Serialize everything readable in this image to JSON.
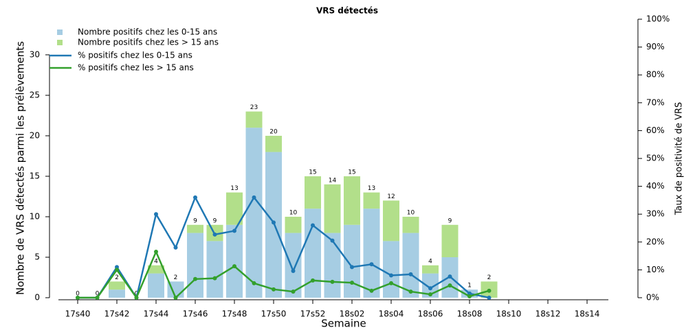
{
  "chart_data": {
    "type": "bar",
    "title": "VRS détectés",
    "x_label": "Semaine",
    "y_label": "Nombre de VRS détectés parmi les prélèvements",
    "y2_label": "Taux de positivité de VRS",
    "categories": [
      "17s40",
      null,
      "17s42",
      null,
      "17s44",
      null,
      "17s46",
      null,
      "17s48",
      null,
      "17s50",
      null,
      "17s52",
      null,
      "18s02",
      null,
      "18s04",
      null,
      "18s06",
      null,
      "18s08",
      null,
      "18s10",
      null,
      "18s12",
      null,
      "18s14",
      null
    ],
    "series": [
      {
        "name": "Nombre positifs chez les 0-15 ans",
        "type": "bar",
        "color": "#a6cde3",
        "values": [
          0,
          0,
          1,
          0,
          3,
          2,
          8,
          7,
          9,
          21,
          18,
          8,
          11,
          8,
          9,
          11,
          7,
          8,
          3,
          5,
          1,
          0,
          null,
          null,
          null,
          null,
          null,
          null
        ]
      },
      {
        "name": "Nombre positifs chez les > 15 ans",
        "type": "bar",
        "color": "#b2df8a",
        "values": [
          0,
          0,
          1,
          0,
          1,
          0,
          1,
          2,
          4,
          2,
          2,
          2,
          4,
          6,
          6,
          2,
          5,
          2,
          1,
          4,
          0,
          2,
          null,
          null,
          null,
          null,
          null,
          null
        ]
      },
      {
        "name": "% positifs chez les 0-15 ans",
        "type": "line",
        "axis": "y2",
        "color": "#1f78b4",
        "values": [
          0,
          0,
          11,
          0,
          30,
          18,
          36,
          22.7,
          24,
          36,
          27,
          9.6,
          26,
          20.5,
          11,
          12,
          8,
          8.4,
          3.4,
          7.6,
          1.5,
          0,
          null,
          null,
          null,
          null,
          null,
          null
        ]
      },
      {
        "name": "% positifs chez les > 15 ans",
        "type": "line",
        "axis": "y2",
        "color": "#33a02c",
        "values": [
          0,
          0,
          10,
          0,
          16.5,
          0,
          6.7,
          7,
          11.3,
          5.2,
          3,
          2.2,
          6.2,
          5.7,
          5.4,
          2.5,
          5.2,
          2.2,
          1.2,
          4.4,
          0.5,
          2.5,
          null,
          null,
          null,
          null,
          null,
          null
        ]
      }
    ],
    "total_labels": [
      0,
      0,
      2,
      0,
      4,
      2,
      9,
      9,
      13,
      23,
      20,
      10,
      15,
      14,
      15,
      13,
      12,
      10,
      4,
      9,
      1,
      2,
      null,
      null,
      null,
      null,
      null,
      null
    ],
    "ylim": [
      0,
      34.4
    ],
    "yticks": [
      0,
      5,
      10,
      15,
      20,
      25,
      30
    ],
    "y2lim": [
      0,
      100
    ],
    "y2ticks": [
      {
        "value": 0,
        "label": "0%"
      },
      {
        "value": 10,
        "label": "10%"
      },
      {
        "value": 20,
        "label": "20%"
      },
      {
        "value": 30,
        "label": "30%"
      },
      {
        "value": 40,
        "label": "40%"
      },
      {
        "value": 50,
        "label": "50%"
      },
      {
        "value": 60,
        "label": "60%"
      },
      {
        "value": 70,
        "label": "70%"
      },
      {
        "value": 80,
        "label": "80%"
      },
      {
        "value": 90,
        "label": "90%"
      },
      {
        "value": 100,
        "label": "100%"
      }
    ]
  }
}
